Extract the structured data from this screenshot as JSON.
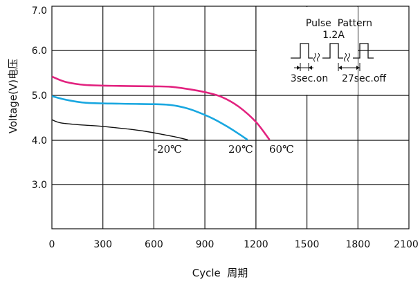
{
  "chart_data": {
    "type": "line",
    "xlabel": "Cycle  周期",
    "ylabel": "Voltage(V)电压",
    "xlim": [
      0,
      2100
    ],
    "ylim": [
      2.0,
      7.0
    ],
    "x_ticks": [
      "0",
      "300",
      "600",
      "900",
      "1200",
      "1500",
      "1800",
      "2100"
    ],
    "y_ticks": [
      "3.0",
      "4.0",
      "5.0",
      "6.0",
      "7.0"
    ],
    "grid": true,
    "series": [
      {
        "name": "-20℃",
        "color": "#111111",
        "points": [
          [
            0,
            4.45
          ],
          [
            50,
            4.38
          ],
          [
            150,
            4.34
          ],
          [
            300,
            4.3
          ],
          [
            450,
            4.24
          ],
          [
            550,
            4.19
          ],
          [
            650,
            4.12
          ],
          [
            730,
            4.06
          ],
          [
            800,
            4.0
          ]
        ]
      },
      {
        "name": "20℃",
        "color": "#19a7e0",
        "points": [
          [
            0,
            4.98
          ],
          [
            80,
            4.9
          ],
          [
            200,
            4.83
          ],
          [
            400,
            4.81
          ],
          [
            600,
            4.8
          ],
          [
            700,
            4.78
          ],
          [
            780,
            4.72
          ],
          [
            860,
            4.62
          ],
          [
            950,
            4.47
          ],
          [
            1030,
            4.3
          ],
          [
            1100,
            4.13
          ],
          [
            1150,
            4.0
          ]
        ]
      },
      {
        "name": "60℃",
        "color": "#e2227f",
        "points": [
          [
            0,
            5.42
          ],
          [
            80,
            5.3
          ],
          [
            200,
            5.23
          ],
          [
            400,
            5.21
          ],
          [
            600,
            5.2
          ],
          [
            700,
            5.19
          ],
          [
            800,
            5.14
          ],
          [
            900,
            5.07
          ],
          [
            1000,
            4.96
          ],
          [
            1100,
            4.74
          ],
          [
            1200,
            4.4
          ],
          [
            1280,
            4.0
          ]
        ]
      }
    ],
    "annotations": {
      "pulse_title": "Pulse  Pattern",
      "pulse_current": "1.2A",
      "pulse_on": "3sec.on",
      "pulse_off": "27sec.off"
    }
  }
}
